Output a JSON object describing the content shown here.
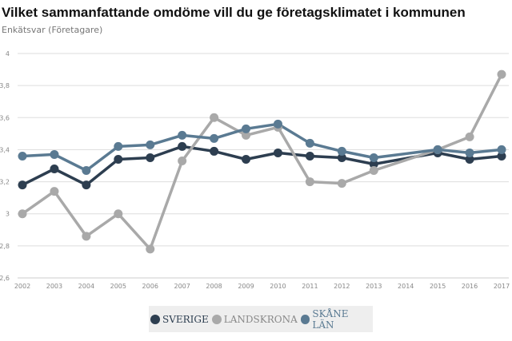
{
  "chart_data": {
    "type": "line",
    "title": "Vilket sammanfattande omdöme vill du ge företagsklimatet i kommunen",
    "subtitle": "Enkätsvar (Företagare)",
    "xlabel": "",
    "ylabel": "",
    "categories": [
      "2002",
      "2003",
      "2004",
      "2005",
      "2006",
      "2007",
      "2008",
      "2009",
      "2010",
      "2011",
      "2012",
      "2013",
      "2014",
      "2015",
      "2016",
      "2017"
    ],
    "ylim": [
      2.6,
      4
    ],
    "yticks": [
      2.6,
      2.8,
      3,
      3.2,
      3.4,
      3.6,
      3.8,
      4
    ],
    "ytick_labels": [
      "2,6",
      "2,8",
      "3",
      "3,2",
      "3,4",
      "3,6",
      "3,8",
      "4"
    ],
    "grid": true,
    "legend_position": "bottom",
    "series": [
      {
        "name": "SVERIGE",
        "color": "#2d3e50",
        "values": [
          3.18,
          3.28,
          3.18,
          3.34,
          3.35,
          3.42,
          3.39,
          3.34,
          3.38,
          3.36,
          3.35,
          3.31,
          null,
          3.38,
          3.34,
          3.36
        ]
      },
      {
        "name": "LANDSKRONA",
        "color": "#a9a9a9",
        "values": [
          3.0,
          3.14,
          2.86,
          3.0,
          2.78,
          3.33,
          3.6,
          3.49,
          3.54,
          3.2,
          3.19,
          3.27,
          null,
          3.4,
          3.48,
          3.87
        ]
      },
      {
        "name": "SKÅNE LÄN",
        "color": "#5a7a92",
        "values": [
          3.36,
          3.37,
          3.27,
          3.42,
          3.43,
          3.49,
          3.47,
          3.53,
          3.56,
          3.44,
          3.39,
          3.35,
          null,
          3.4,
          3.38,
          3.4
        ]
      }
    ]
  }
}
